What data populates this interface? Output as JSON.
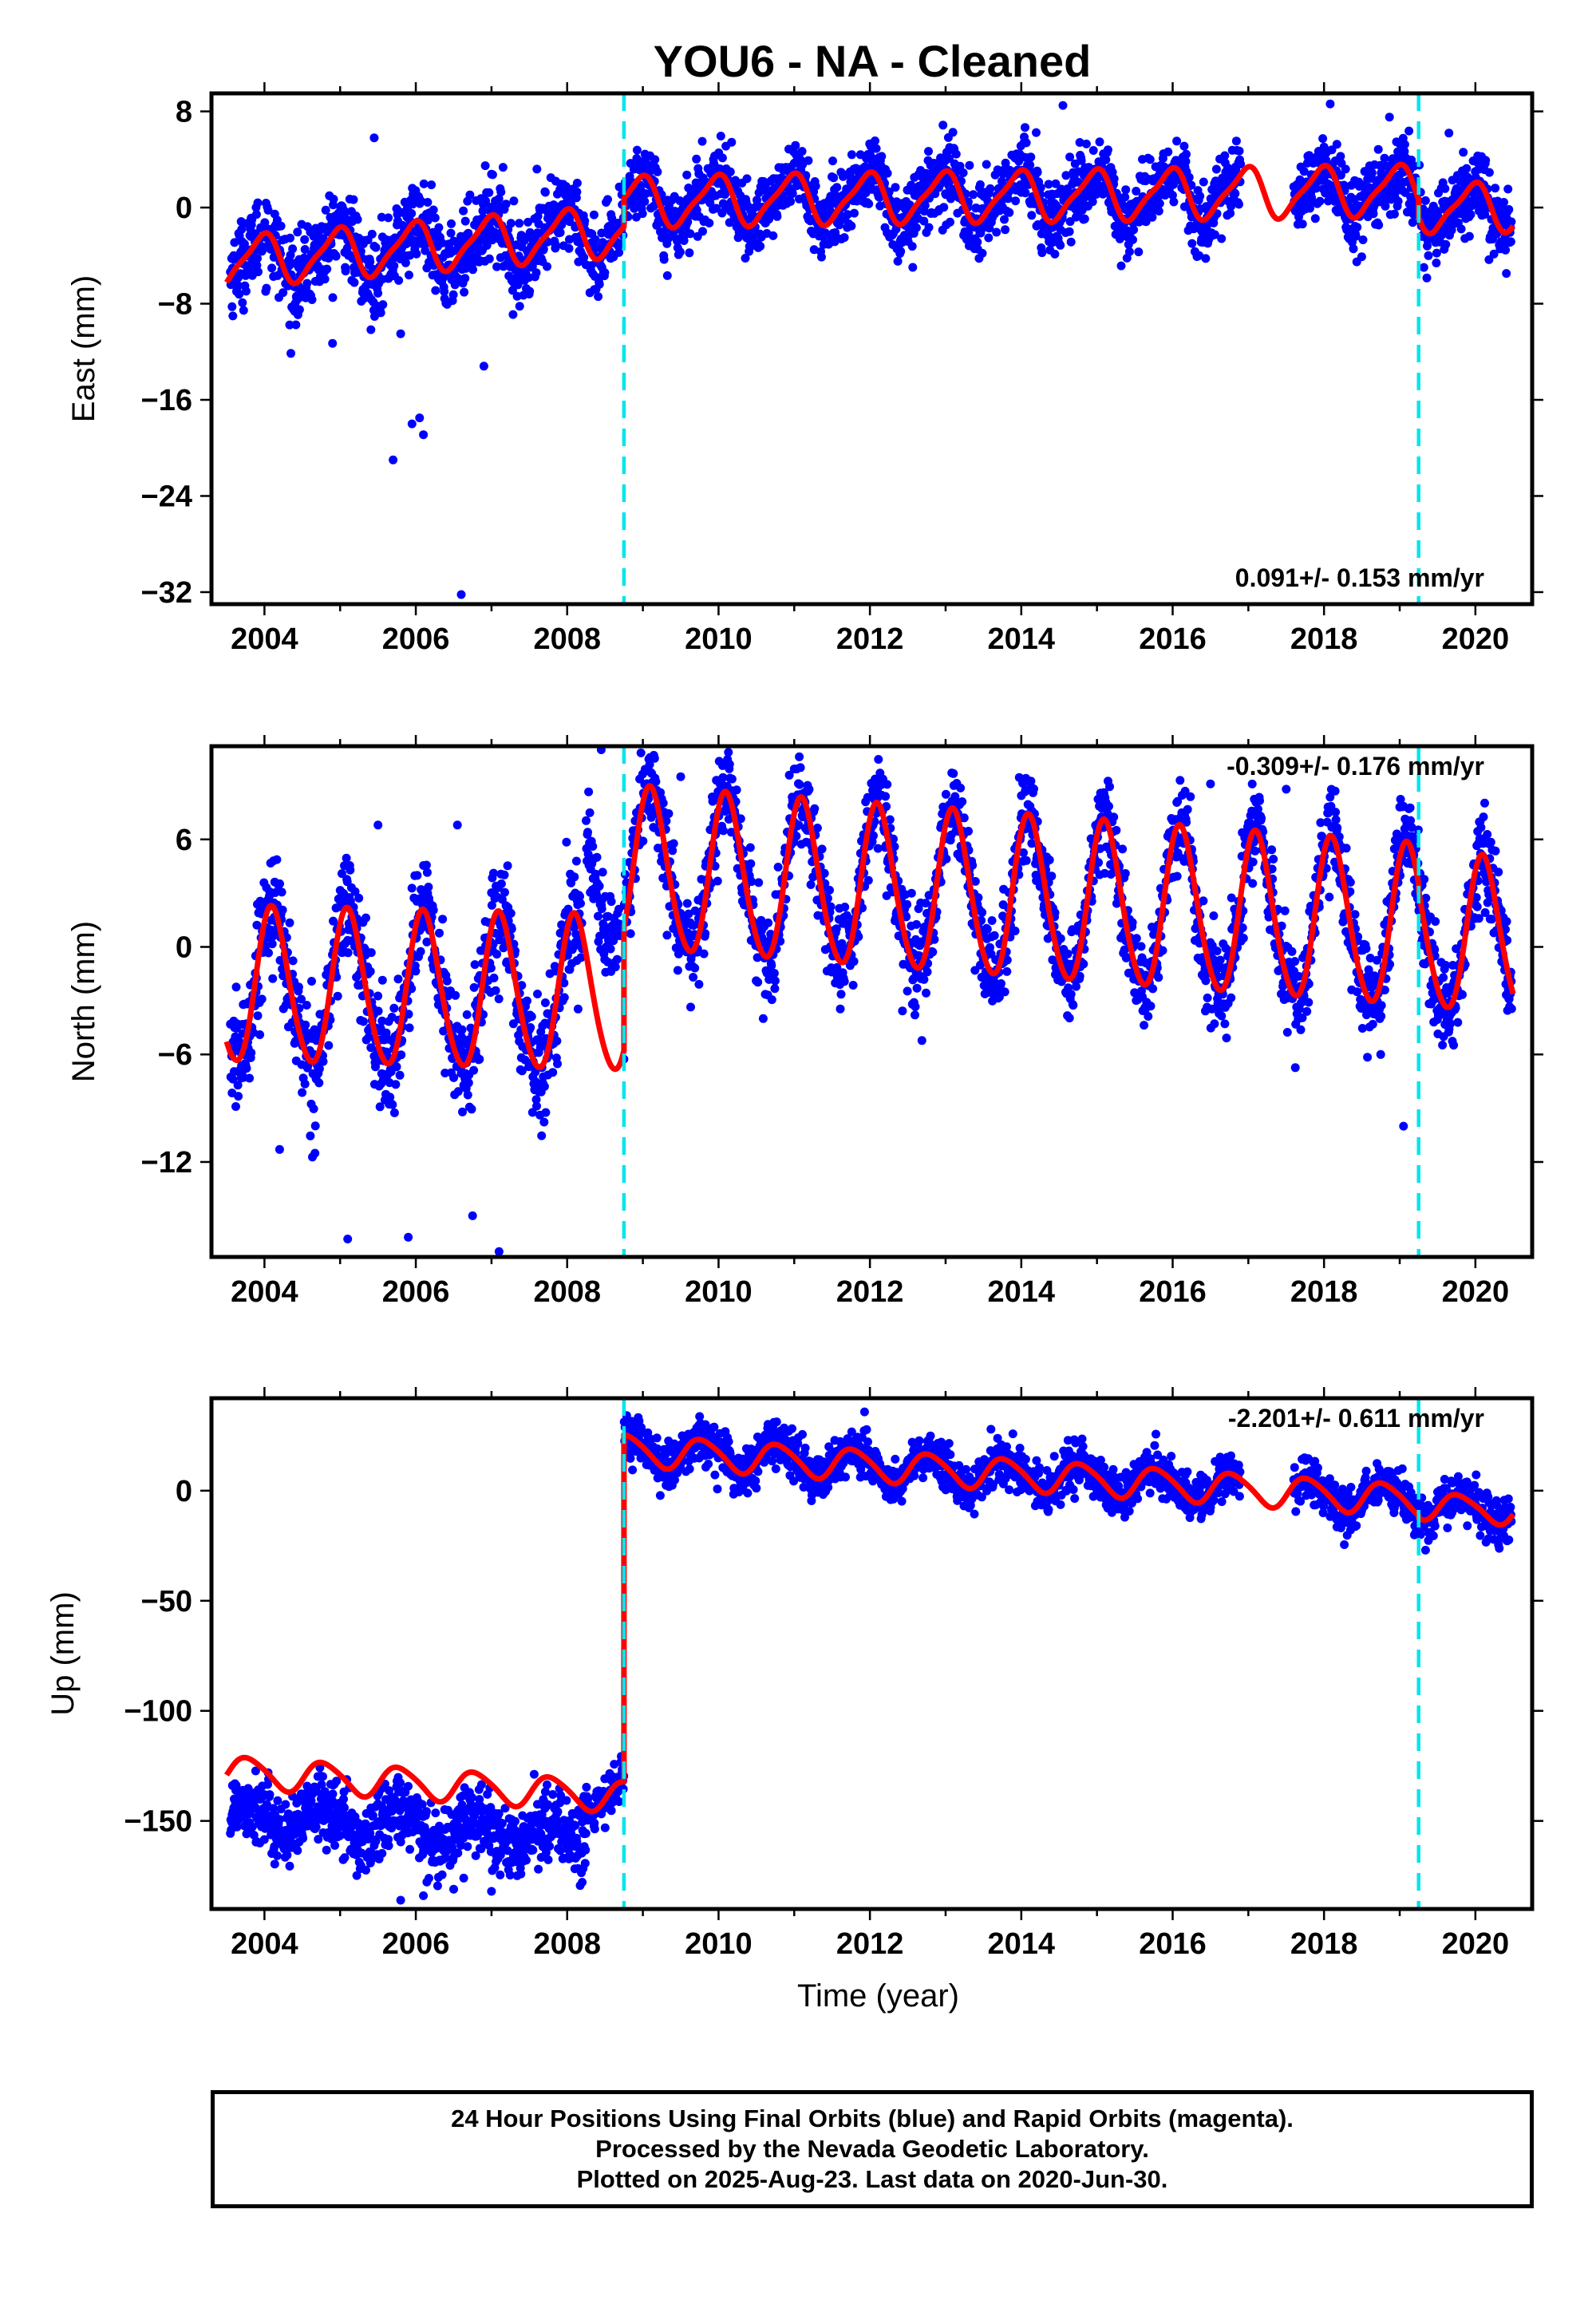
{
  "title": "YOU6  - NA - Cleaned",
  "colors": {
    "final_orbits": "#0000ff",
    "rapid_orbits": "#ff00ff",
    "model": "#ff0000",
    "breaks": "#00e5ee"
  },
  "chart_data": [
    {
      "type": "scatter",
      "component": "east",
      "ylabel": "East (mm)",
      "ylim": [
        -33,
        9.5
      ],
      "yticks": [
        8,
        0,
        -8,
        -16,
        -24,
        -32
      ],
      "xlim": [
        2003.3,
        2020.75
      ],
      "xticks": [
        2004,
        2006,
        2008,
        2010,
        2012,
        2014,
        2016,
        2018,
        2020
      ],
      "rate_text": "0.091+/- 0.153 mm/yr",
      "rate_position": "bottom-right",
      "breaks": [
        2008.75,
        2019.25
      ],
      "model_segments": [
        {
          "t0": 2003.5,
          "t1": 2008.75,
          "offset": -3.3,
          "trend": 0.5,
          "t_ref": 2006,
          "annual_amp": 2.0,
          "annual_phase": 1.85,
          "semi_amp": 0.5,
          "semi_phase": 0.5
        },
        {
          "t0": 2008.75,
          "t1": 2019.25,
          "offset": 1.0,
          "trend": 0.091,
          "t_ref": 2014.5,
          "annual_amp": 2.0,
          "annual_phase": 1.85,
          "semi_amp": 0.5,
          "semi_phase": 0.5
        },
        {
          "t0": 2019.25,
          "t1": 2020.5,
          "offset": 0.0,
          "trend": 0.091,
          "t_ref": 2019.9,
          "annual_amp": 1.9,
          "annual_phase": 1.85,
          "semi_amp": 0.5,
          "semi_phase": 0.5
        }
      ],
      "data_segments": [
        {
          "t0": 2003.55,
          "t1": 2008.25,
          "noise": 1.7
        },
        {
          "t0": 2008.3,
          "t1": 2016.9,
          "noise": 1.5
        },
        {
          "t0": 2017.6,
          "t1": 2020.48,
          "noise": 1.5
        }
      ],
      "outliers": [
        [
          2005.45,
          5.8
        ],
        [
          2005.7,
          -21.0
        ],
        [
          2005.95,
          -18.0
        ],
        [
          2006.05,
          -17.5
        ],
        [
          2006.1,
          -18.9
        ],
        [
          2006.6,
          -32.2
        ],
        [
          2005.8,
          -10.5
        ],
        [
          2006.9,
          -13.2
        ],
        [
          2014.55,
          8.5
        ],
        [
          2007.6,
          3.2
        ],
        [
          2004.9,
          -11.3
        ],
        [
          2019.65,
          6.2
        ]
      ]
    },
    {
      "type": "scatter",
      "component": "north",
      "ylabel": "North (mm)",
      "ylim": [
        -17.3,
        11.2
      ],
      "yticks": [
        6,
        0,
        -6,
        -12
      ],
      "xlim": [
        2003.3,
        2020.75
      ],
      "xticks": [
        2004,
        2006,
        2008,
        2010,
        2012,
        2014,
        2016,
        2018,
        2020
      ],
      "rate_text": "-0.309+/- 0.176 mm/yr",
      "rate_position": "top-right",
      "breaks": [
        2008.75,
        2019.25
      ],
      "model_segments": [
        {
          "t0": 2003.5,
          "t1": 2008.75,
          "offset": -2.5,
          "trend": -0.1,
          "t_ref": 2006,
          "annual_amp": 4.3,
          "annual_phase": 0.9,
          "semi_amp": 0.4,
          "semi_phase": 1.0
        },
        {
          "t0": 2008.75,
          "t1": 2019.25,
          "offset": 2.5,
          "trend": -0.309,
          "t_ref": 2014.5,
          "annual_amp": 4.5,
          "annual_phase": 0.9,
          "semi_amp": 0.4,
          "semi_phase": 1.0
        },
        {
          "t0": 2019.25,
          "t1": 2020.5,
          "offset": 0.6,
          "trend": -0.309,
          "t_ref": 2019.9,
          "annual_amp": 4.3,
          "annual_phase": 0.9,
          "semi_amp": 0.4,
          "semi_phase": 1.0
        }
      ],
      "data_segments": [
        {
          "t0": 2003.55,
          "t1": 2008.2,
          "noise": 1.6
        },
        {
          "t0": 2008.25,
          "t1": 2008.7,
          "noise": 1.2,
          "shift": 7.0
        },
        {
          "t0": 2008.75,
          "t1": 2020.48,
          "noise": 1.3
        }
      ],
      "outliers": [
        [
          2004.2,
          -11.3
        ],
        [
          2005.1,
          -16.3
        ],
        [
          2005.5,
          6.8
        ],
        [
          2005.9,
          -16.2
        ],
        [
          2006.55,
          6.8
        ],
        [
          2006.75,
          -15.0
        ],
        [
          2007.1,
          -17.0
        ],
        [
          2008.45,
          11.0
        ],
        [
          2019.05,
          -10.0
        ],
        [
          2009.5,
          9.5
        ],
        [
          2016.5,
          9.1
        ],
        [
          2017.5,
          8.8
        ]
      ]
    },
    {
      "type": "scatter",
      "component": "up",
      "ylabel": "Up (mm)",
      "ylabel_note": "",
      "ylim": [
        -190,
        42
      ],
      "yticks": [
        0,
        -50,
        -100,
        -150
      ],
      "xlim": [
        2003.3,
        2020.75
      ],
      "xticks": [
        2004,
        2006,
        2008,
        2010,
        2012,
        2014,
        2016,
        2018,
        2020
      ],
      "xlabel": "Time (year)",
      "rate_text": "-2.201+/- 0.611 mm/yr",
      "rate_position": "top-right",
      "breaks": [
        2008.75,
        2019.25
      ],
      "model_segments": [
        {
          "t0": 2003.5,
          "t1": 2008.75,
          "offset": -133,
          "trend": -2.2,
          "t_ref": 2006,
          "annual_amp": 7.0,
          "annual_phase": 2.9,
          "semi_amp": 1.0,
          "semi_phase": 0.0
        },
        {
          "t0": 2008.75,
          "t1": 2019.25,
          "offset": 6.0,
          "trend": -2.201,
          "t_ref": 2014.5,
          "annual_amp": 7.0,
          "annual_phase": 2.9,
          "semi_amp": 1.0,
          "semi_phase": 0.0
        },
        {
          "t0": 2019.25,
          "t1": 2020.5,
          "offset": -8.0,
          "trend": -2.201,
          "t_ref": 2019.9,
          "annual_amp": 6.0,
          "annual_phase": 2.9,
          "semi_amp": 1.0,
          "semi_phase": 0.0
        }
      ],
      "data_segments": [
        {
          "t0": 2003.55,
          "t1": 2008.25,
          "noise": 8.0,
          "shift": -20
        },
        {
          "t0": 2008.2,
          "t1": 2016.9,
          "noise": 5.0
        },
        {
          "t0": 2017.6,
          "t1": 2020.48,
          "noise": 5.0
        }
      ],
      "outliers": [
        [
          2005.8,
          -186
        ],
        [
          2006.1,
          -184
        ],
        [
          2006.5,
          -181
        ],
        [
          2003.6,
          -140
        ],
        [
          2007.0,
          -182
        ]
      ]
    }
  ],
  "footer": {
    "line1": "24 Hour Positions Using Final Orbits (blue) and Rapid Orbits (magenta).",
    "line2": "Processed by the Nevada Geodetic Laboratory.",
    "line3": "Plotted on 2025-Aug-23. Last data on 2020-Jun-30."
  }
}
